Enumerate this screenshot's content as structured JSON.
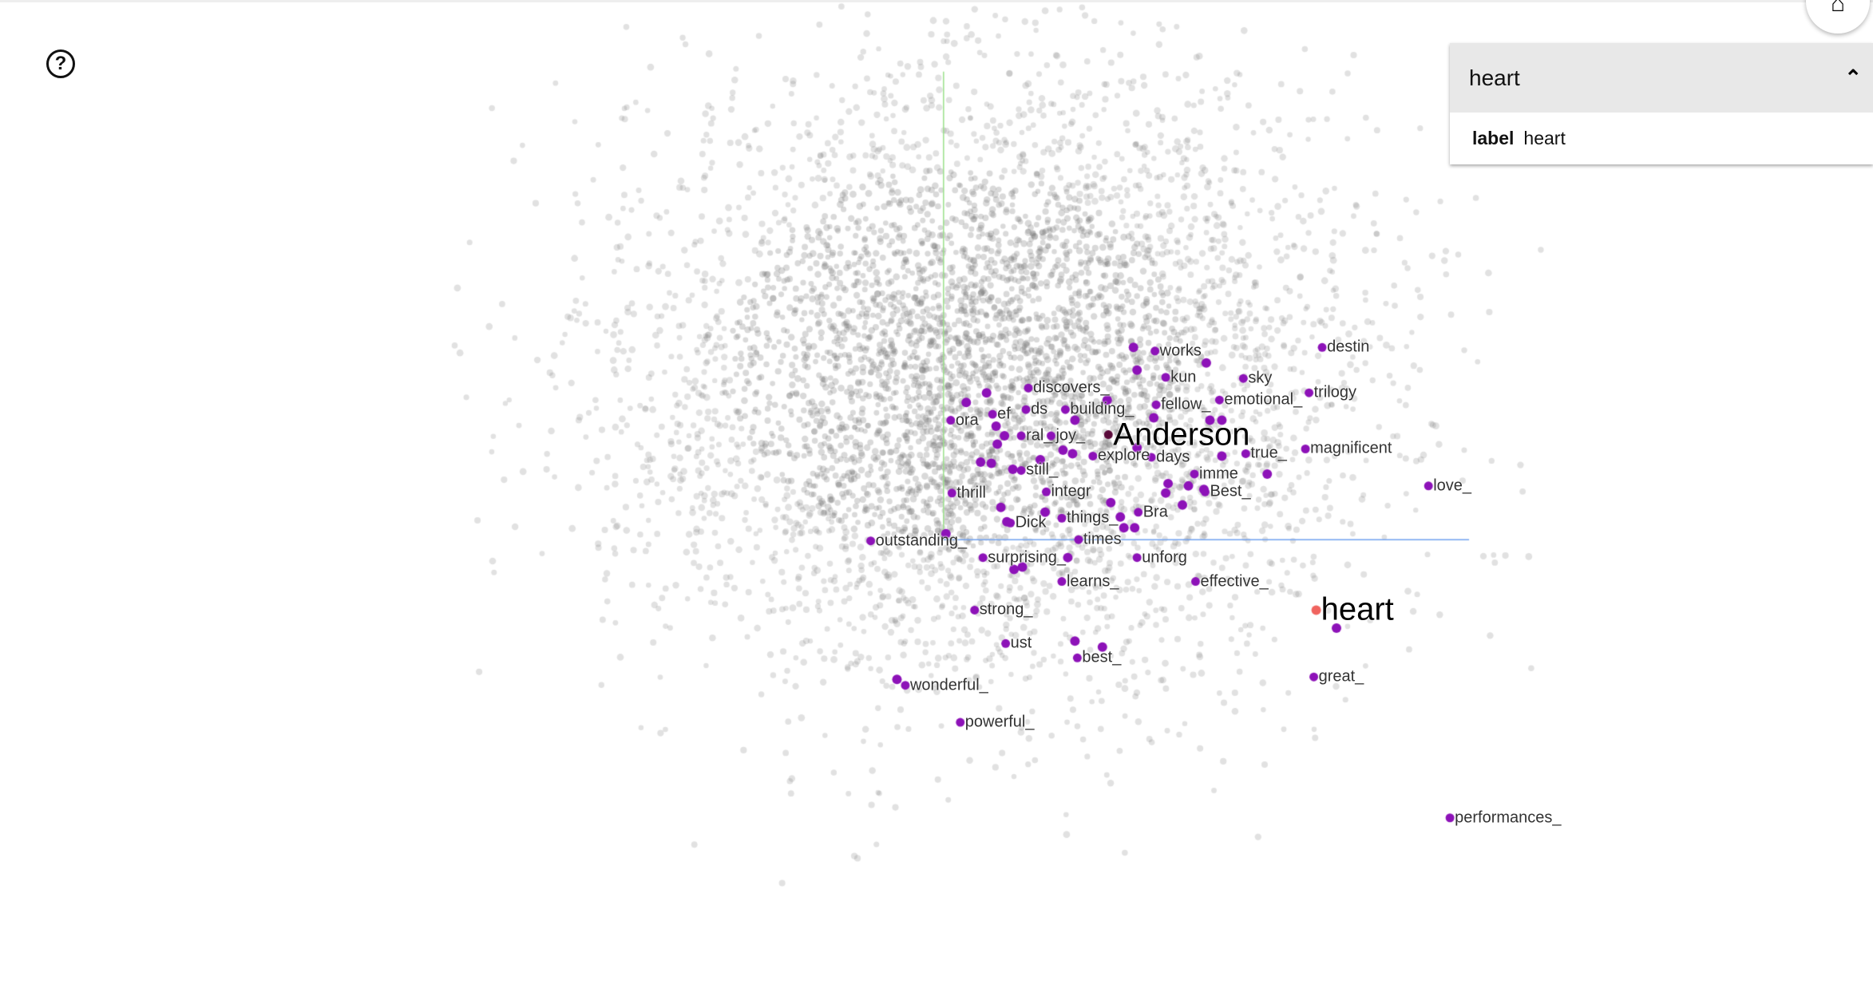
{
  "help_icon": "help-circle-icon",
  "home_icon": "home-icon",
  "inspector": {
    "title": "heart",
    "collapse_icon": "chevron-up-icon",
    "field_name": "label",
    "field_value": "heart"
  },
  "colors": {
    "selected": "#f0645f",
    "neighbor": "#8d12b8",
    "background_points": "#888888",
    "x_axis": "#6fa0ef",
    "y_axis": "#9ae08a"
  },
  "points": {
    "selected": "heart",
    "labels": [
      "works",
      "destin",
      "kun",
      "sky",
      "discovers_",
      "trilogy",
      "emotional_",
      "fellow_",
      "ora",
      "ef",
      "ds",
      "building_",
      "Anderson",
      "ral_",
      "joy_",
      "true_",
      "magnificent",
      "explore",
      "days",
      "still_",
      "imme",
      "love_",
      "thrill",
      "integr",
      "Best_",
      "Bra",
      "things_",
      "Dick",
      "outstanding_",
      "times",
      "surprising_",
      "unforg",
      "learns_",
      "effective_",
      "heart",
      "strong_",
      "ust",
      "best_",
      "wonderful_",
      "great_",
      "powerful_",
      "performances_"
    ]
  }
}
